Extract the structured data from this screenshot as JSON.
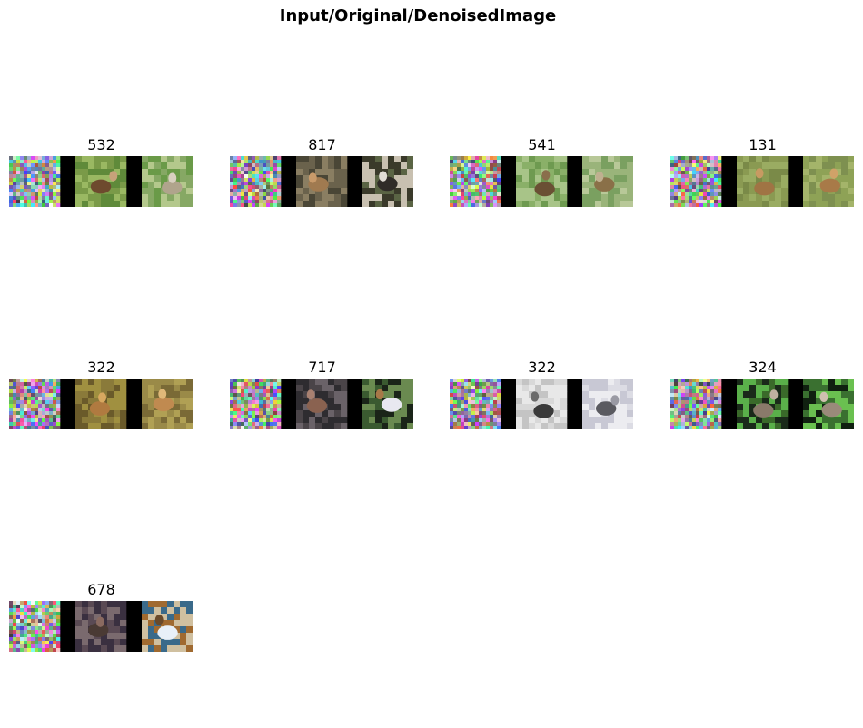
{
  "figure": {
    "title": "Input/Original/DenoisedImage"
  },
  "panels": [
    {
      "label": "532",
      "noise_seed": 11,
      "original": {
        "bg": [
          "#7a9a48",
          "#5f8a3a",
          "#9ab862"
        ],
        "subject": "#6e4a2e",
        "accent": "#c8a27a"
      },
      "denoised": {
        "bg": [
          "#86a864",
          "#6a9a48",
          "#b4c88c"
        ],
        "subject": "#b0a48c",
        "accent": "#d8d0c0"
      }
    },
    {
      "label": "817",
      "noise_seed": 23,
      "original": {
        "bg": [
          "#4a4636",
          "#6a624c",
          "#8a7e62"
        ],
        "subject": "#a07a50",
        "accent": "#c89a6a"
      },
      "denoised": {
        "bg": [
          "#3a3a2a",
          "#5a6444",
          "#c8c0b0"
        ],
        "subject": "#302c28",
        "accent": "#e0dcd4"
      }
    },
    {
      "label": "541",
      "noise_seed": 37,
      "original": {
        "bg": [
          "#8ab068",
          "#a8c488",
          "#6e9a50"
        ],
        "subject": "#6a5034",
        "accent": "#8a6e4c"
      },
      "denoised": {
        "bg": [
          "#9ab47a",
          "#b8c898",
          "#7aa060"
        ],
        "subject": "#8a7048",
        "accent": "#c0b090"
      }
    },
    {
      "label": "131",
      "noise_seed": 41,
      "original": {
        "bg": [
          "#8a9a52",
          "#9aac62",
          "#7a8a48"
        ],
        "subject": "#a07444",
        "accent": "#c89a62"
      },
      "denoised": {
        "bg": [
          "#8ea256",
          "#a4b46a",
          "#7e9050"
        ],
        "subject": "#a87a48",
        "accent": "#d0a268"
      }
    },
    {
      "label": "322",
      "noise_seed": 53,
      "original": {
        "bg": [
          "#6a5a2a",
          "#8a7a3a",
          "#a09040"
        ],
        "subject": "#b07a40",
        "accent": "#d8a860"
      },
      "denoised": {
        "bg": [
          "#7a6a36",
          "#9a8a48",
          "#b0a054"
        ],
        "subject": "#c08a50",
        "accent": "#e0b878"
      }
    },
    {
      "label": "717",
      "noise_seed": 67,
      "original": {
        "bg": [
          "#2e2c30",
          "#4a4448",
          "#6a6268"
        ],
        "subject": "#8a6250",
        "accent": "#a88070"
      },
      "denoised": {
        "bg": [
          "#1a2418",
          "#3a5a30",
          "#6a8a50"
        ],
        "subject": "#e8e8f0",
        "accent": "#a87848"
      }
    },
    {
      "label": "322",
      "noise_seed": 79,
      "original": {
        "bg": [
          "#d8d8d8",
          "#c4c4c4",
          "#e8e8e8"
        ],
        "subject": "#3a3a3a",
        "accent": "#6a6a6a"
      },
      "denoised": {
        "bg": [
          "#dcdce4",
          "#c8c8d4",
          "#ececf0"
        ],
        "subject": "#5a5a60",
        "accent": "#9a9aa4"
      }
    },
    {
      "label": "324",
      "noise_seed": 83,
      "original": {
        "bg": [
          "#1a2a1a",
          "#3a6a2a",
          "#5ab04a"
        ],
        "subject": "#8a7a6a",
        "accent": "#c0b0a0"
      },
      "denoised": {
        "bg": [
          "#102010",
          "#3a7030",
          "#6ac050"
        ],
        "subject": "#9a8a7a",
        "accent": "#d0c0b0"
      }
    },
    {
      "label": "678",
      "noise_seed": 97,
      "original": {
        "bg": [
          "#3a3040",
          "#5a4a54",
          "#7a6a6e"
        ],
        "subject": "#4a3a34",
        "accent": "#8a6a60"
      },
      "denoised": {
        "bg": [
          "#a06a30",
          "#3a6a8a",
          "#d0c0a0"
        ],
        "subject": "#e8f0f8",
        "accent": "#6a4a2a"
      }
    }
  ]
}
